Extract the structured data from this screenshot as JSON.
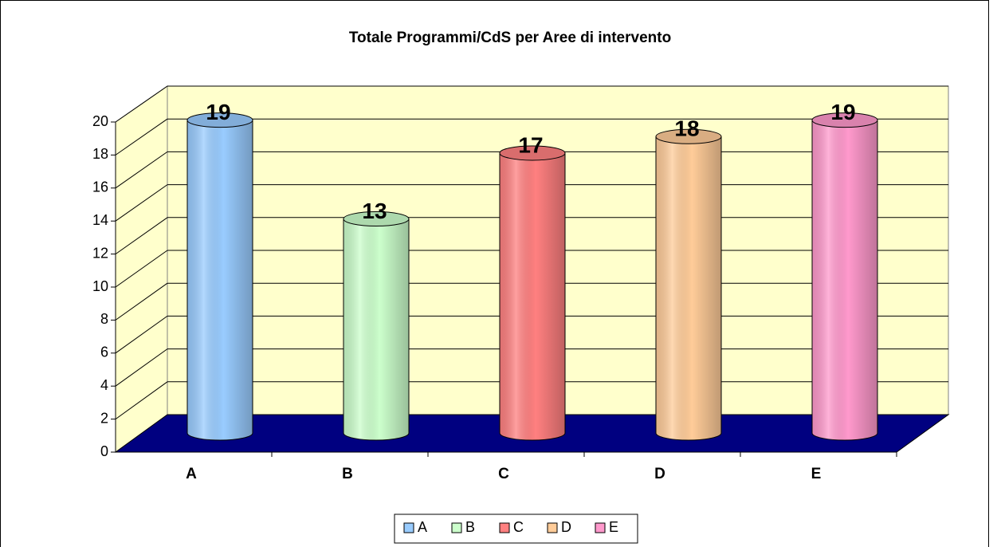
{
  "chart_data": {
    "type": "bar3d",
    "title": "Totale Programmi/CdS  per Aree di intervento",
    "categories": [
      "A",
      "B",
      "C",
      "D",
      "E"
    ],
    "values": [
      19,
      13,
      17,
      18,
      19
    ],
    "colors": [
      "#99ccff",
      "#ccffcc",
      "#ff8080",
      "#ffcc99",
      "#ff99cc"
    ],
    "ylim": [
      0,
      20
    ],
    "yticks": [
      0,
      2,
      4,
      6,
      8,
      10,
      12,
      14,
      16,
      18,
      20
    ],
    "grid": true,
    "legend": "bottom"
  }
}
